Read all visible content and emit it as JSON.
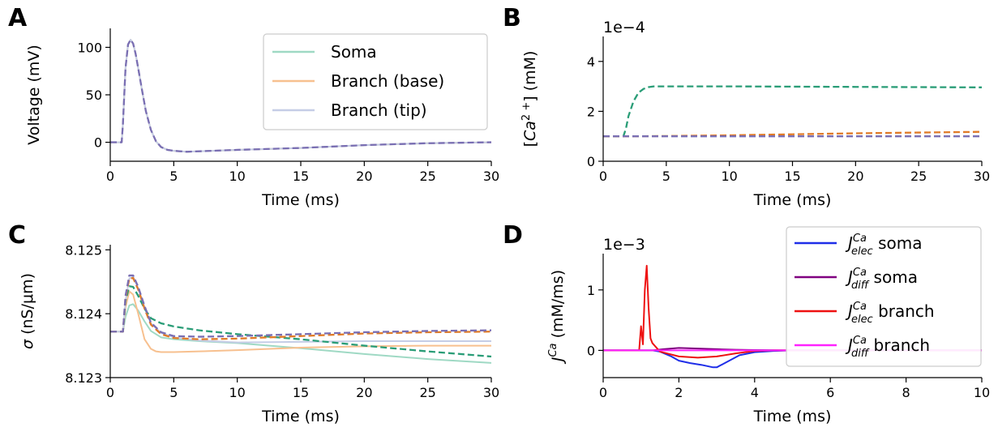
{
  "panels": {
    "A": {
      "letter": "A"
    },
    "B": {
      "letter": "B"
    },
    "C": {
      "letter": "C"
    },
    "D": {
      "letter": "D"
    }
  },
  "colors": {
    "soma_light": "#9fd9c4",
    "branch_base_light": "#f7c08f",
    "branch_tip_light": "#c5cde6",
    "soma_dash": "#2a9d77",
    "branch_base_dash": "#e07b28",
    "branch_tip_dash": "#7a6fb3",
    "j_elec_soma": "#1f2ee8",
    "j_diff_soma": "#800080",
    "j_elec_branch": "#ee1111",
    "j_diff_branch": "#ff22ff"
  },
  "chart_data": [
    {
      "id": "A",
      "type": "line",
      "xlabel": "Time (ms)",
      "ylabel": "Voltage (mV)",
      "xlim": [
        0,
        30
      ],
      "ylim": [
        -20,
        120
      ],
      "xticks": [
        0,
        5,
        10,
        15,
        20,
        25,
        30
      ],
      "yticks": [
        0,
        50,
        100
      ],
      "legend": {
        "placement": "top-right",
        "entries": [
          "Soma",
          "Branch (base)",
          "Branch (tip)"
        ]
      },
      "series": [
        {
          "name": "Soma",
          "style": "solid",
          "color_key": "soma_light",
          "x": [
            0,
            0.9,
            1.0,
            1.2,
            1.4,
            1.6,
            1.8,
            2.0,
            2.2,
            2.5,
            2.8,
            3.2,
            3.6,
            4.0,
            4.5,
            5.0,
            6.0,
            8.0,
            10,
            15,
            20,
            25,
            30
          ],
          "y": [
            0,
            0,
            20,
            78,
            103,
            108,
            104,
            93,
            78,
            55,
            33,
            13,
            1,
            -5,
            -8,
            -9,
            -10,
            -9,
            -8,
            -6,
            -3,
            -1,
            0
          ]
        },
        {
          "name": "Branch (base)",
          "style": "solid",
          "color_key": "branch_base_light",
          "x": [
            0,
            0.9,
            1.0,
            1.2,
            1.4,
            1.6,
            1.8,
            2.0,
            2.2,
            2.5,
            2.8,
            3.2,
            3.6,
            4.0,
            4.5,
            5.0,
            6.0,
            8.0,
            10,
            15,
            20,
            25,
            30
          ],
          "y": [
            0,
            0,
            20,
            78,
            103,
            108,
            104,
            93,
            78,
            55,
            33,
            13,
            1,
            -5,
            -8,
            -9,
            -10,
            -9,
            -8,
            -6,
            -3,
            -1,
            0
          ]
        },
        {
          "name": "Branch (tip)",
          "style": "solid",
          "color_key": "branch_tip_light",
          "x": [
            0,
            0.9,
            1.0,
            1.2,
            1.4,
            1.6,
            1.8,
            2.0,
            2.2,
            2.5,
            2.8,
            3.2,
            3.6,
            4.0,
            4.5,
            5.0,
            6.0,
            8.0,
            10,
            15,
            20,
            25,
            30
          ],
          "y": [
            0,
            0,
            20,
            78,
            103,
            108,
            104,
            93,
            78,
            55,
            33,
            13,
            1,
            -5,
            -8,
            -9,
            -10,
            -9,
            -8,
            -6,
            -3,
            -1,
            0
          ]
        },
        {
          "style": "dashed",
          "color_key": "branch_tip_dash",
          "x": [
            0,
            0.9,
            1.0,
            1.2,
            1.4,
            1.6,
            1.8,
            2.0,
            2.2,
            2.5,
            2.8,
            3.2,
            3.6,
            4.0,
            4.5,
            5.0,
            6.0,
            8.0,
            10,
            15,
            20,
            25,
            30
          ],
          "y": [
            0,
            0,
            20,
            78,
            103,
            108,
            104,
            93,
            78,
            55,
            33,
            13,
            1,
            -5,
            -8,
            -9,
            -10,
            -9,
            -8,
            -6,
            -3,
            -1,
            0
          ]
        }
      ]
    },
    {
      "id": "B",
      "type": "line",
      "xlabel": "Time (ms)",
      "ylabel_parts": [
        "[",
        "Ca",
        "2 +",
        "] (mM)"
      ],
      "offset_text": "1e−4",
      "xlim": [
        0,
        30
      ],
      "ylim": [
        0,
        5
      ],
      "xticks": [
        0,
        5,
        10,
        15,
        20,
        25,
        30
      ],
      "yticks": [
        0,
        2,
        4
      ],
      "series": [
        {
          "style": "dashed",
          "color_key": "soma_dash",
          "x": [
            0,
            1.6,
            1.8,
            2.0,
            2.4,
            2.8,
            3.2,
            3.6,
            4.0,
            5.0,
            10,
            20,
            30
          ],
          "y": [
            1,
            1,
            1.3,
            1.8,
            2.4,
            2.75,
            2.9,
            2.97,
            3.0,
            3.0,
            3.0,
            2.98,
            2.96
          ]
        },
        {
          "style": "dashed",
          "color_key": "branch_base_dash",
          "x": [
            0,
            2,
            5,
            10,
            15,
            20,
            25,
            30
          ],
          "y": [
            1,
            1,
            1.01,
            1.04,
            1.08,
            1.12,
            1.15,
            1.18
          ]
        },
        {
          "style": "dashed",
          "color_key": "branch_tip_dash",
          "x": [
            0,
            10,
            20,
            30
          ],
          "y": [
            1,
            1,
            1,
            1
          ]
        }
      ]
    },
    {
      "id": "C",
      "type": "line",
      "xlabel": "Time (ms)",
      "ylabel": "σ (nS/μm)",
      "xlim": [
        0,
        30
      ],
      "ylim": [
        8.123,
        8.12508
      ],
      "xticks": [
        0,
        5,
        10,
        15,
        20,
        25,
        30
      ],
      "yticks": [
        8.123,
        8.124,
        8.125
      ],
      "ytick_labels": [
        "8.123",
        "8.124",
        "8.125"
      ],
      "series": [
        {
          "style": "solid",
          "color_key": "soma_light",
          "x": [
            0,
            1.0,
            1.2,
            1.5,
            1.8,
            2.2,
            2.7,
            3.2,
            4.0,
            5.0,
            7.0,
            10,
            15,
            20,
            25,
            30
          ],
          "y": [
            8.12372,
            8.12372,
            8.12395,
            8.12413,
            8.12415,
            8.12405,
            8.12388,
            8.12373,
            8.12363,
            8.1236,
            8.12357,
            8.12354,
            8.12346,
            8.12337,
            8.12329,
            8.12323
          ]
        },
        {
          "style": "solid",
          "color_key": "branch_base_light",
          "x": [
            0,
            1.0,
            1.2,
            1.5,
            1.8,
            2.2,
            2.7,
            3.2,
            3.6,
            4.0,
            5.0,
            7.0,
            10,
            15,
            20,
            25,
            30
          ],
          "y": [
            8.12372,
            8.12372,
            8.1241,
            8.12435,
            8.1243,
            8.124,
            8.1236,
            8.12345,
            8.12341,
            8.1234,
            8.1234,
            8.12341,
            8.12343,
            8.12347,
            8.12349,
            8.1235,
            8.1235
          ]
        },
        {
          "style": "solid",
          "color_key": "branch_tip_light",
          "x": [
            0,
            1.0,
            1.2,
            1.5,
            1.8,
            2.2,
            2.7,
            3.2,
            4.0,
            5.0,
            7.0,
            10,
            15,
            20,
            25,
            30
          ],
          "y": [
            8.12372,
            8.12372,
            8.1242,
            8.12455,
            8.12458,
            8.1244,
            8.1241,
            8.12385,
            8.1237,
            8.12363,
            8.12358,
            8.12355,
            8.12356,
            8.12357,
            8.12357,
            8.12357
          ]
        },
        {
          "style": "dashed",
          "color_key": "soma_dash",
          "x": [
            0,
            1.0,
            1.2,
            1.5,
            1.8,
            2.2,
            2.7,
            3.2,
            4.0,
            5.0,
            7.0,
            10,
            15,
            20,
            25,
            30
          ],
          "y": [
            8.12372,
            8.12372,
            8.1242,
            8.12443,
            8.12442,
            8.12428,
            8.12408,
            8.12393,
            8.12385,
            8.1238,
            8.12374,
            8.12368,
            8.1236,
            8.1235,
            8.12341,
            8.12333
          ]
        },
        {
          "style": "dashed",
          "color_key": "branch_base_dash",
          "x": [
            0,
            1.0,
            1.2,
            1.5,
            1.8,
            2.2,
            2.7,
            3.2,
            4.0,
            5.0,
            7.0,
            10,
            15,
            20,
            25,
            30
          ],
          "y": [
            8.12372,
            8.12372,
            8.12425,
            8.12455,
            8.12456,
            8.12438,
            8.12408,
            8.12383,
            8.12368,
            8.12362,
            8.1236,
            8.12361,
            8.12365,
            8.12369,
            8.12371,
            8.12372
          ]
        },
        {
          "style": "dashed",
          "color_key": "branch_tip_dash",
          "x": [
            0,
            1.0,
            1.2,
            1.5,
            1.8,
            2.2,
            2.7,
            3.2,
            4.0,
            5.0,
            7.0,
            10,
            15,
            20,
            25,
            30
          ],
          "y": [
            8.12372,
            8.12372,
            8.12428,
            8.1246,
            8.1246,
            8.12442,
            8.12412,
            8.12386,
            8.12371,
            8.12365,
            8.12364,
            8.12365,
            8.12368,
            8.12371,
            8.12373,
            8.12374
          ]
        }
      ]
    },
    {
      "id": "D",
      "type": "line",
      "xlabel": "Time (ms)",
      "ylabel_parts": [
        "J",
        "Ca",
        " (mM/ms)"
      ],
      "offset_text": "1e−3",
      "xlim": [
        0,
        10
      ],
      "ylim": [
        -0.45,
        1.6
      ],
      "xticks": [
        0,
        2,
        4,
        6,
        8,
        10
      ],
      "yticks": [
        0,
        1
      ],
      "legend": {
        "placement": "top-right",
        "entries": [
          {
            "j": "J",
            "sup": "Ca",
            "sub": "elec",
            "tail": " soma",
            "color_key": "j_elec_soma"
          },
          {
            "j": "J",
            "sup": "Ca",
            "sub": "diff",
            "tail": " soma",
            "color_key": "j_diff_soma"
          },
          {
            "j": "J",
            "sup": "Ca",
            "sub": "elec",
            "tail": " branch",
            "color_key": "j_elec_branch"
          },
          {
            "j": "J",
            "sup": "Ca",
            "sub": "diff",
            "tail": " branch",
            "color_key": "j_diff_branch"
          }
        ]
      },
      "series": [
        {
          "style": "solid",
          "color_key": "j_elec_soma",
          "x": [
            0,
            1.3,
            1.5,
            1.8,
            2.0,
            2.3,
            2.6,
            2.9,
            3.0,
            3.3,
            3.6,
            4.0,
            4.5,
            5.0,
            10
          ],
          "y": [
            0,
            0,
            -0.02,
            -0.1,
            -0.17,
            -0.21,
            -0.24,
            -0.28,
            -0.28,
            -0.18,
            -0.08,
            -0.03,
            -0.01,
            0,
            0
          ]
        },
        {
          "style": "solid",
          "color_key": "j_diff_soma",
          "x": [
            0,
            1.3,
            1.6,
            2.0,
            2.5,
            3.0,
            3.5,
            4.0,
            5.0,
            10
          ],
          "y": [
            0,
            0,
            0.02,
            0.04,
            0.03,
            0.02,
            0.01,
            0.005,
            0,
            0
          ]
        },
        {
          "style": "solid",
          "color_key": "j_elec_branch",
          "x": [
            0,
            0.95,
            1.0,
            1.05,
            1.1,
            1.15,
            1.2,
            1.25,
            1.3,
            1.4,
            1.5,
            2.0,
            2.5,
            3.0,
            3.5,
            4.0,
            4.5,
            10
          ],
          "y": [
            0,
            0,
            0.4,
            0.1,
            1.0,
            1.4,
            0.7,
            0.2,
            0.12,
            0.05,
            -0.02,
            -0.1,
            -0.12,
            -0.1,
            -0.05,
            -0.01,
            0,
            0
          ]
        },
        {
          "style": "solid",
          "color_key": "j_diff_branch",
          "x": [
            0,
            10
          ],
          "y": [
            0,
            0
          ]
        }
      ]
    }
  ]
}
